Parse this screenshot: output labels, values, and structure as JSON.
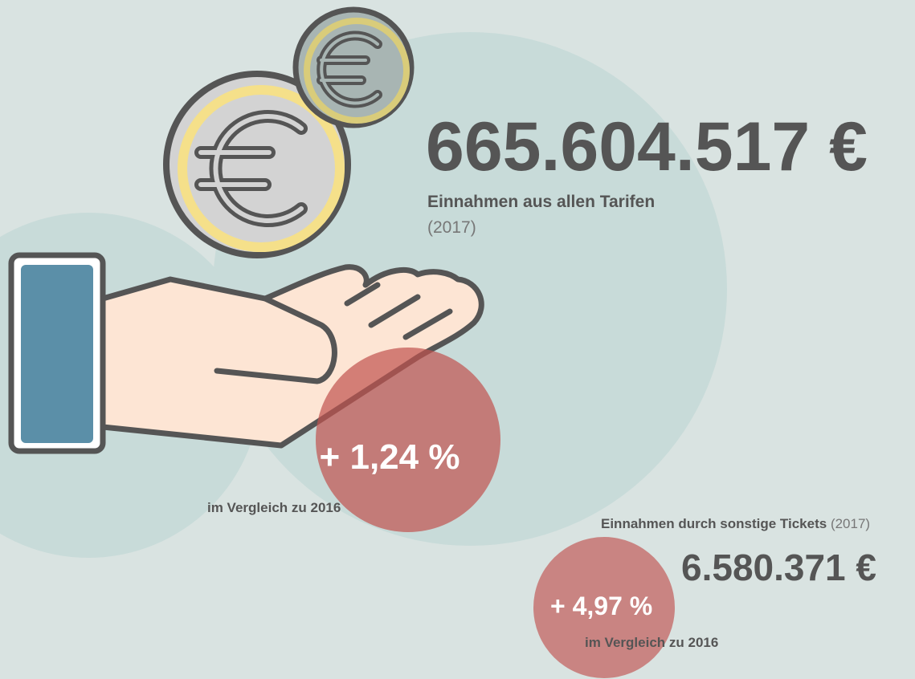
{
  "main": {
    "amount": "665.604.517 €",
    "label": "Einnahmen aus allen Tarifen",
    "year": "(2017)",
    "change": "+ 1,24 %",
    "comparison": "im Vergleich zu 2016"
  },
  "secondary": {
    "label": "Einnahmen durch sonstige Tickets",
    "year": "(2017)",
    "amount": "6.580.371 €",
    "change": "+ 4,97 %",
    "comparison": "im Vergleich zu 2016"
  }
}
